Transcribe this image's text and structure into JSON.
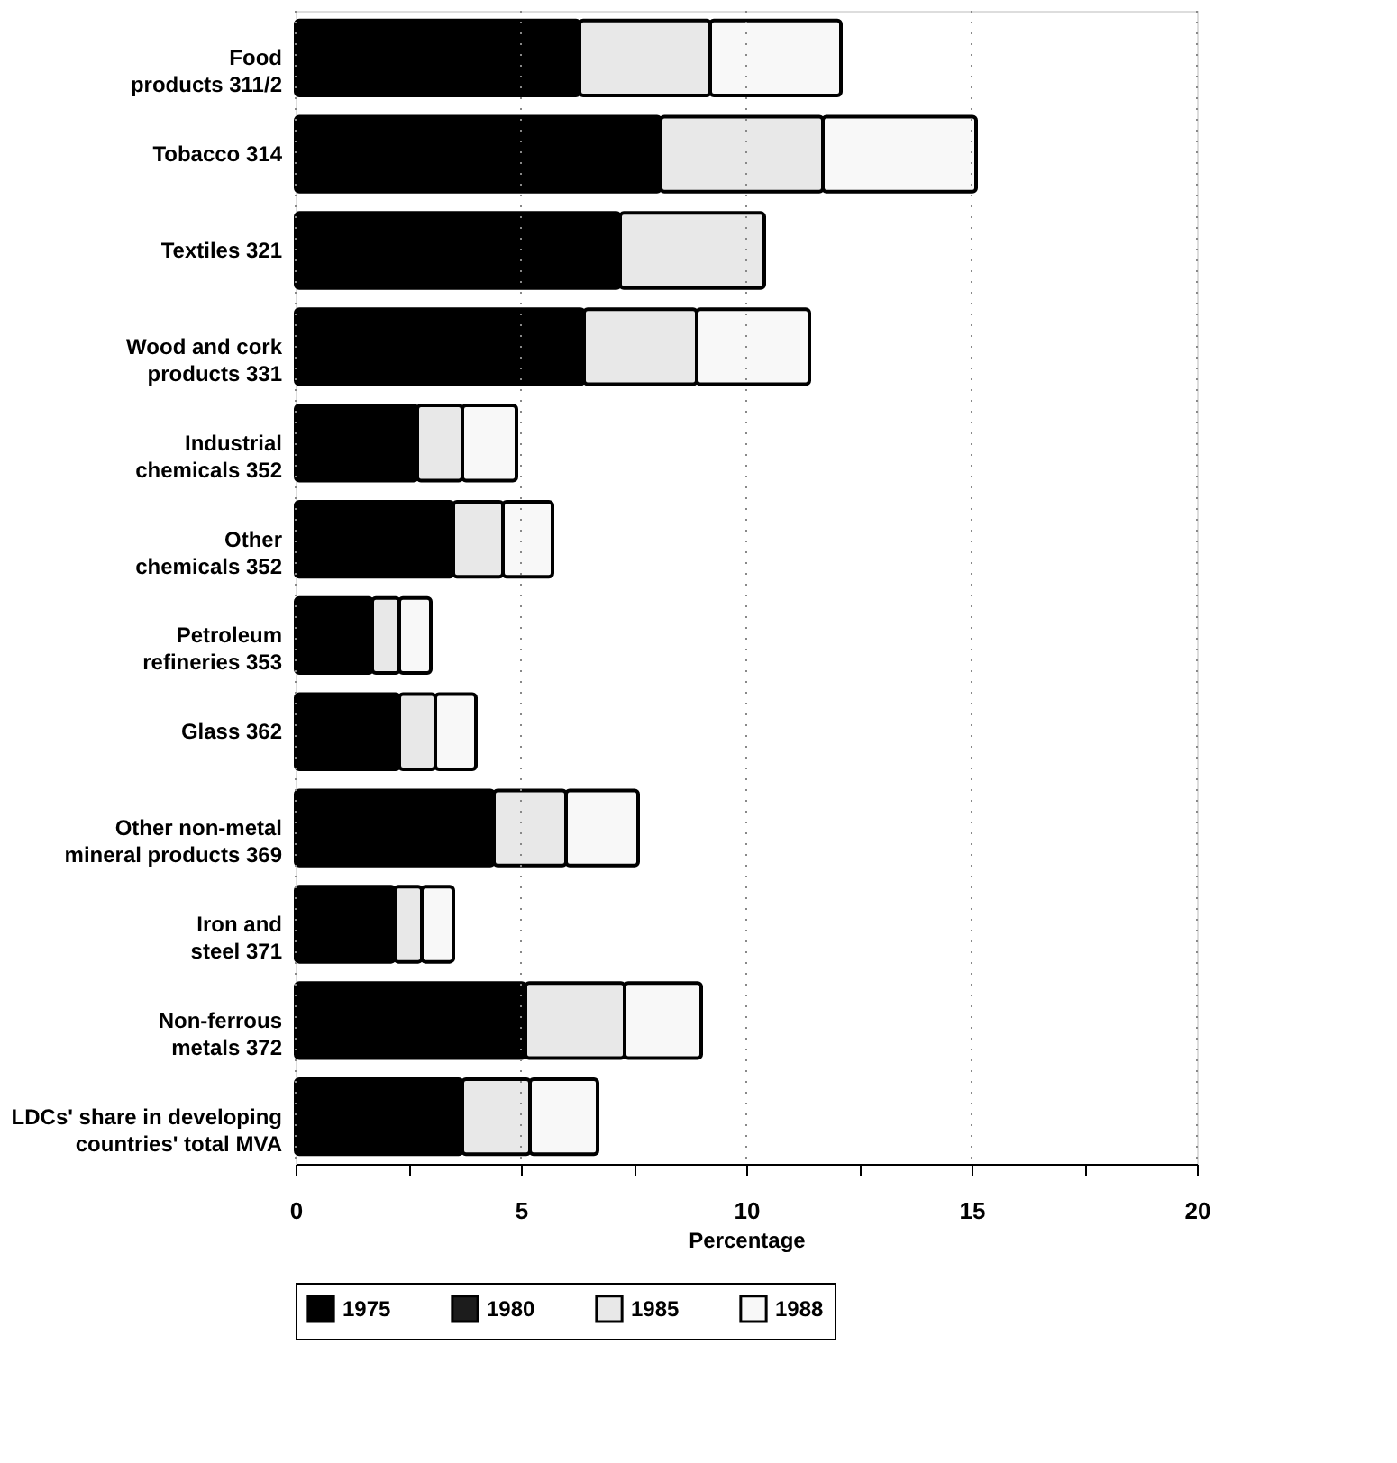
{
  "chart_data": {
    "type": "bar",
    "orientation": "horizontal",
    "stacked": true,
    "xlabel": "Percentage",
    "categories": [
      "Food\nproducts 311/2",
      "Tobacco 314",
      "Textiles 321",
      "Wood and cork\nproducts 331",
      "Industrial\nchemicals 352",
      "Other\nchemicals 352",
      "Petroleum\nrefineries 353",
      "Glass 362",
      "Other non-metal\nmineral products 369",
      "Iron and\nsteel 371",
      "Non-ferrous\nmetals 372",
      "LDCs' share in developing\ncountries' total MVA"
    ],
    "series": [
      {
        "name": "1975",
        "color": "#000000",
        "values": [
          6.3,
          8.1,
          7.2,
          6.4,
          2.7,
          3.5,
          1.7,
          2.3,
          4.4,
          2.2,
          5.1,
          3.7
        ]
      },
      {
        "name": "1980",
        "color": "#1c1c1c",
        "values": [
          null,
          null,
          null,
          null,
          null,
          null,
          null,
          null,
          null,
          null,
          null,
          null
        ]
      },
      {
        "name": "1985",
        "color": "#e8e8e8",
        "values": [
          2.9,
          3.6,
          3.2,
          2.5,
          1.0,
          1.1,
          0.6,
          0.8,
          1.6,
          0.6,
          2.2,
          1.5
        ]
      },
      {
        "name": "1988",
        "color": "#f8f8f8",
        "values": [
          2.9,
          3.4,
          null,
          2.5,
          1.2,
          1.1,
          0.7,
          0.9,
          1.6,
          0.7,
          1.7,
          1.5
        ]
      }
    ],
    "xlim": [
      0,
      20
    ],
    "xticks": [
      0,
      {
        "value": 2.5,
        "label": null
      },
      5,
      {
        "value": 7.5,
        "label": null
      },
      10,
      {
        "value": 12.5,
        "label": null
      },
      15,
      {
        "value": 17.5,
        "label": null
      },
      20
    ],
    "grid": "x",
    "legend": "bottom"
  }
}
